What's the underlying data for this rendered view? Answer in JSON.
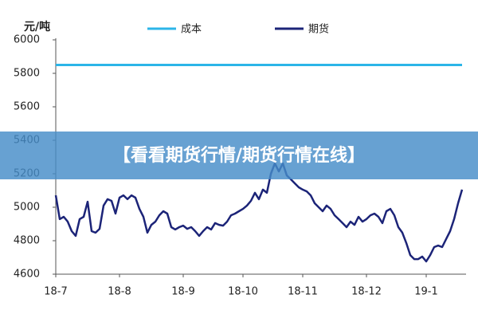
{
  "chart_data": {
    "type": "line",
    "y_label": "元/吨",
    "banner": "【看看期货行情/期货行情在线】",
    "categories": [
      "18-7",
      null,
      null,
      null,
      null,
      null,
      null,
      null,
      null,
      null,
      null,
      null,
      null,
      null,
      null,
      null,
      "18-8",
      null,
      null,
      null,
      null,
      null,
      null,
      null,
      null,
      null,
      null,
      null,
      null,
      null,
      null,
      null,
      "18-9",
      null,
      null,
      null,
      null,
      null,
      null,
      null,
      null,
      null,
      null,
      null,
      null,
      null,
      null,
      "18-10",
      null,
      null,
      null,
      null,
      null,
      null,
      null,
      null,
      null,
      null,
      null,
      null,
      null,
      null,
      "18-11",
      null,
      null,
      null,
      null,
      null,
      null,
      null,
      null,
      null,
      null,
      null,
      null,
      null,
      null,
      null,
      "18-12",
      null,
      null,
      null,
      null,
      null,
      null,
      null,
      null,
      null,
      null,
      null,
      null,
      null,
      null,
      "19-1",
      null,
      null,
      null,
      null,
      null,
      null,
      null,
      null,
      null
    ],
    "series": [
      {
        "name": "成本",
        "color": "#2cb5e8",
        "values": [
          5850,
          5850,
          5850,
          5850,
          5850,
          5850,
          5850,
          5850,
          5850,
          5850,
          5850,
          5850,
          5850,
          5850,
          5850,
          5850,
          5850,
          5850,
          5850,
          5850,
          5850,
          5850,
          5850,
          5850,
          5850,
          5850,
          5850,
          5850,
          5850,
          5850,
          5850,
          5850,
          5850,
          5850,
          5850,
          5850,
          5850,
          5850,
          5850,
          5850,
          5850,
          5850,
          5850,
          5850,
          5850,
          5850,
          5850,
          5850,
          5850,
          5850,
          5850,
          5850,
          5850,
          5850,
          5850,
          5850,
          5850,
          5850,
          5850,
          5850,
          5850,
          5850,
          5850,
          5850,
          5850,
          5850,
          5850,
          5850,
          5850,
          5850,
          5850,
          5850,
          5850,
          5850,
          5850,
          5850,
          5850,
          5850,
          5850,
          5850,
          5850,
          5850,
          5850,
          5850,
          5850,
          5850,
          5850,
          5850,
          5850,
          5850,
          5850,
          5850,
          5850,
          5850,
          5850,
          5850,
          5850,
          5850,
          5850,
          5850,
          5850,
          5850,
          5850
        ]
      },
      {
        "name": "期货",
        "color": "#1c2478",
        "values": [
          5071,
          4929,
          4943,
          4914,
          4857,
          4829,
          4929,
          4943,
          5033,
          4857,
          4848,
          4871,
          5010,
          5048,
          5038,
          4962,
          5057,
          5071,
          5048,
          5071,
          5057,
          4990,
          4943,
          4848,
          4895,
          4914,
          4952,
          4976,
          4962,
          4881,
          4867,
          4881,
          4890,
          4871,
          4881,
          4857,
          4829,
          4857,
          4881,
          4867,
          4905,
          4895,
          4890,
          4914,
          4952,
          4962,
          4976,
          4990,
          5010,
          5038,
          5086,
          5048,
          5105,
          5086,
          5200,
          5262,
          5214,
          5262,
          5190,
          5167,
          5143,
          5119,
          5105,
          5095,
          5071,
          5024,
          5000,
          4976,
          5010,
          4990,
          4952,
          4929,
          4905,
          4881,
          4914,
          4895,
          4943,
          4914,
          4929,
          4952,
          4962,
          4943,
          4905,
          4976,
          4990,
          4952,
          4881,
          4848,
          4786,
          4714,
          4690,
          4690,
          4705,
          4676,
          4714,
          4762,
          4771,
          4762,
          4810,
          4857,
          4929,
          5024,
          5105
        ]
      }
    ],
    "ylim": [
      4600,
      6000
    ],
    "yticks": [
      4600,
      4800,
      5000,
      5200,
      5400,
      5600,
      5800,
      6000
    ]
  }
}
